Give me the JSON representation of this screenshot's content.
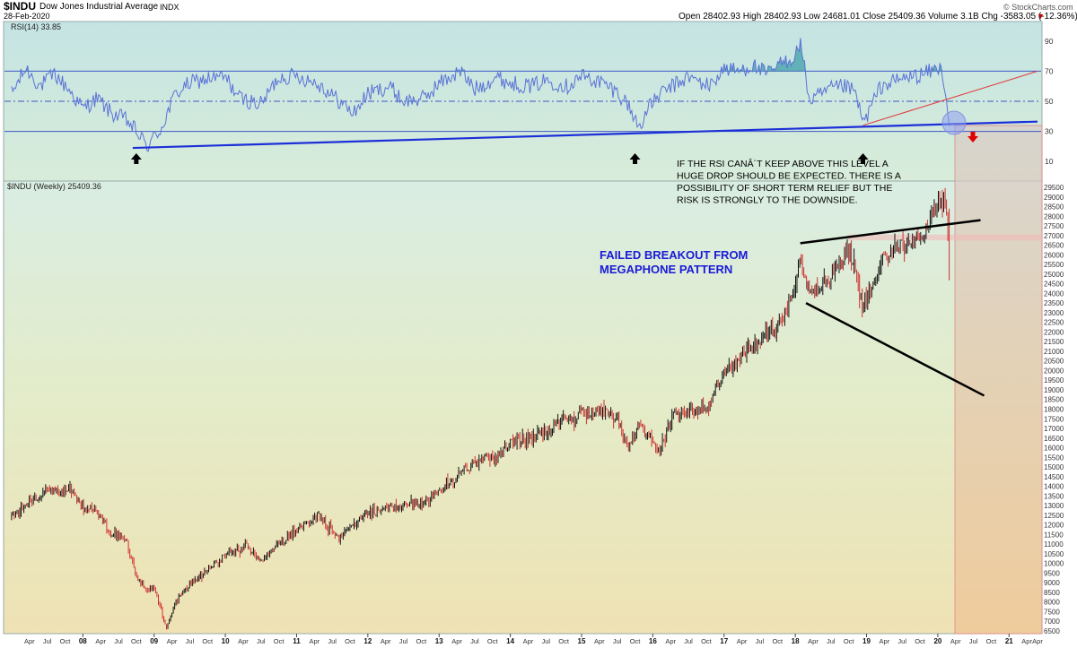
{
  "header": {
    "symbol": "$INDU",
    "name": "Dow Jones Industrial Average",
    "exchange": "INDX",
    "date": "28-Feb-2020",
    "quote": "Open 28402.93  High 28402.93  Low 24681.01  Close 25409.36  Volume 3.1B  Chg -3583.05 (-12.36%)",
    "chg_arrow_icon": "triangle-down-icon",
    "watermark": "© StockCharts.com"
  },
  "rsi_panel": {
    "label": "RSI(14) 33.85",
    "ticks": [
      "90",
      "70",
      "50",
      "30",
      "10"
    ]
  },
  "price_panel": {
    "label": "$INDU (Weekly) 25409.36"
  },
  "annotations": {
    "rsi_note": [
      "IF THE RSI CANÂ´T KEEP ABOVE THIS LEVEL A",
      "HUGE DROP SHOULD BE EXPECTED. THERE IS A",
      "POSSIBILITY OF SHORT TERM RELIEF BUT THE",
      "RISK IS STRONGLY TO THE DOWNSIDE."
    ],
    "pattern_note": [
      "FAILED BREAKOUT FROM",
      "MEGAPHONE PATTERN"
    ],
    "arrow_color": "#000000",
    "down_arrow_color": "#e00000",
    "pattern_text_color": "#1a1ad8"
  },
  "chart_data": {
    "type": "line",
    "price_axis_ticks": [
      "29500",
      "29000",
      "28500",
      "28000",
      "27500",
      "27000",
      "26500",
      "26000",
      "25500",
      "25000",
      "24500",
      "24000",
      "23500",
      "23000",
      "22500",
      "22000",
      "21500",
      "21000",
      "20500",
      "20000",
      "19500",
      "19000",
      "18500",
      "18000",
      "17500",
      "17000",
      "16500",
      "16000",
      "15500",
      "15000",
      "14500",
      "14000",
      "13500",
      "13000",
      "12500",
      "12000",
      "11500",
      "11000",
      "10500",
      "10000",
      "9500",
      "9000",
      "8500",
      "8000",
      "7500",
      "7000",
      "6500"
    ],
    "price_ylim": [
      6500,
      29500
    ],
    "rsi_ylim": [
      0,
      100
    ],
    "rsi_levels": [
      70,
      50,
      30
    ],
    "x_axis": {
      "year_labels": [
        "08",
        "09",
        "10",
        "11",
        "12",
        "13",
        "14",
        "15",
        "16",
        "17",
        "18",
        "19",
        "20",
        "21"
      ],
      "month_labels": [
        "Apr",
        "Jul",
        "Oct",
        "Apr",
        "Jul",
        "Oct",
        "Apr",
        "Jul",
        "Oct",
        "Apr",
        "Jul",
        "Oct",
        "Apr",
        "Jul",
        "Oct",
        "Apr",
        "Jul",
        "Oct",
        "Apr",
        "Jul",
        "Oct",
        "Apr",
        "Jul",
        "Oct",
        "Apr",
        "Jul",
        "Oct",
        "Apr",
        "Jul",
        "Oct",
        "Apr",
        "Jul",
        "Oct",
        "Apr",
        "Jul",
        "Oct",
        "Apr",
        "Jul",
        "Oct",
        "Apr",
        "Jul",
        "Oct",
        "Apr",
        "Jul",
        "Oct",
        "Apr",
        "Jul",
        "Oct",
        "Apr",
        "Jul",
        "Oct",
        "Apr",
        "Jul",
        "Oct",
        "Apr"
      ]
    },
    "price_series": {
      "name": "$INDU (Weekly)",
      "x": [
        2007.0,
        2007.25,
        2007.5,
        2007.8,
        2008.0,
        2008.2,
        2008.4,
        2008.6,
        2008.75,
        2008.9,
        2009.0,
        2009.1,
        2009.17,
        2009.3,
        2009.5,
        2009.75,
        2010.0,
        2010.3,
        2010.5,
        2010.75,
        2011.0,
        2011.3,
        2011.6,
        2011.75,
        2012.0,
        2012.3,
        2012.5,
        2012.8,
        2013.0,
        2013.3,
        2013.5,
        2013.8,
        2014.0,
        2014.3,
        2014.5,
        2014.8,
        2015.0,
        2015.3,
        2015.5,
        2015.65,
        2015.8,
        2016.0,
        2016.1,
        2016.3,
        2016.5,
        2016.8,
        2016.85,
        2017.0,
        2017.3,
        2017.5,
        2017.8,
        2018.0,
        2018.07,
        2018.15,
        2018.3,
        2018.5,
        2018.75,
        2018.95,
        2019.2,
        2019.4,
        2019.6,
        2019.8,
        2020.0,
        2020.1,
        2020.16
      ],
      "close": [
        12400,
        13200,
        13700,
        13900,
        12900,
        12700,
        11500,
        11300,
        9300,
        8600,
        8800,
        7500,
        6600,
        8000,
        8900,
        9700,
        10400,
        10900,
        10100,
        11000,
        11700,
        12500,
        11300,
        11900,
        12600,
        12900,
        13000,
        13200,
        13800,
        14700,
        15300,
        15500,
        16300,
        16400,
        16900,
        17400,
        17700,
        18000,
        17600,
        15900,
        17200,
        16400,
        15800,
        17800,
        17900,
        18100,
        19000,
        19800,
        20900,
        21400,
        22600,
        24500,
        26100,
        24500,
        24200,
        24800,
        26400,
        23300,
        25700,
        26500,
        26500,
        27000,
        28500,
        29300,
        25400
      ]
    },
    "rsi_series": {
      "name": "RSI(14)",
      "x": [
        2007.0,
        2007.2,
        2007.4,
        2007.6,
        2007.8,
        2008.0,
        2008.2,
        2008.4,
        2008.6,
        2008.75,
        2008.9,
        2009.1,
        2009.3,
        2009.5,
        2009.75,
        2010.0,
        2010.2,
        2010.5,
        2010.75,
        2011.0,
        2011.3,
        2011.6,
        2011.8,
        2012.0,
        2012.3,
        2012.5,
        2012.8,
        2013.0,
        2013.3,
        2013.5,
        2013.8,
        2014.0,
        2014.3,
        2014.5,
        2014.8,
        2015.0,
        2015.3,
        2015.5,
        2015.65,
        2015.8,
        2016.0,
        2016.2,
        2016.5,
        2016.8,
        2017.0,
        2017.2,
        2017.4,
        2017.6,
        2017.8,
        2018.0,
        2018.07,
        2018.2,
        2018.5,
        2018.7,
        2018.85,
        2018.95,
        2019.2,
        2019.5,
        2019.8,
        2020.0,
        2020.07,
        2020.16
      ],
      "values": [
        55,
        72,
        60,
        68,
        58,
        45,
        52,
        42,
        38,
        30,
        20,
        32,
        55,
        62,
        65,
        66,
        52,
        48,
        66,
        67,
        62,
        50,
        42,
        55,
        60,
        50,
        52,
        62,
        70,
        58,
        66,
        62,
        60,
        64,
        60,
        67,
        62,
        56,
        48,
        33,
        50,
        58,
        66,
        60,
        72,
        70,
        74,
        68,
        75,
        80,
        90,
        50,
        58,
        60,
        55,
        35,
        60,
        65,
        68,
        72,
        70,
        33.85
      ]
    },
    "rsi_trendline": {
      "x": [
        2008.7,
        2021.4
      ],
      "y": [
        19,
        36.5
      ]
    },
    "rsi_resistance_line": {
      "x": [
        2018.95,
        2021.4
      ],
      "y": [
        34,
        70
      ]
    },
    "megaphone_upper": {
      "x": [
        2018.07,
        2020.6
      ],
      "y": [
        26600,
        27800
      ]
    },
    "megaphone_lower": {
      "x": [
        2018.15,
        2020.65
      ],
      "y": [
        23500,
        18700
      ]
    },
    "rsi_arrows_x": [
      2008.75,
      2015.75,
      2018.95
    ]
  }
}
